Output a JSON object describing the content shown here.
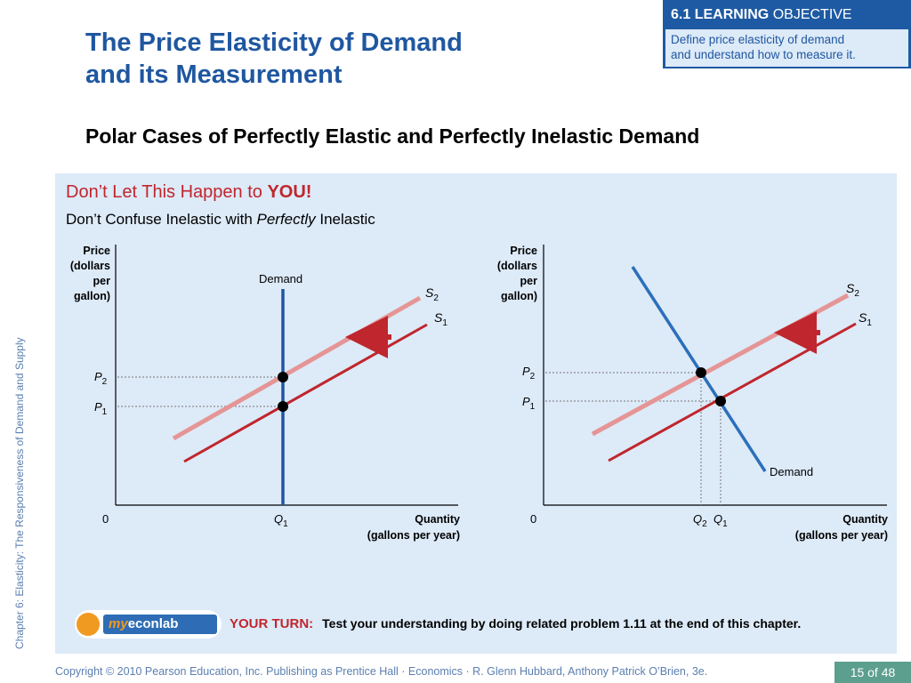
{
  "side_label": "Chapter 6:  Elasticity:  The Responsiveness of Demand and Supply",
  "title_line1": "The Price Elasticity of Demand",
  "title_line2": "and its Measurement",
  "objective": {
    "head_bold": "6.1 LEARNING",
    "head_rest": " OBJECTIVE",
    "line1": "Define price elasticity of demand",
    "line2": "and understand how to measure it."
  },
  "subtitle": "Polar Cases of Perfectly Elastic and Perfectly Inelastic Demand",
  "warning": {
    "prefix": "Don’t Let This Happen to ",
    "emph": "YOU!",
    "line2_a": "Don’t Confuse Inelastic with ",
    "line2_italic": "Perfectly",
    "line2_b": " Inelastic"
  },
  "graph_labels": {
    "price_l1": "Price",
    "price_l2": "(dollars",
    "price_l3": "per",
    "price_l4": "gallon)",
    "quantity_l1": "Quantity",
    "quantity_l2": "(gallons per year)",
    "origin": "0",
    "demand": "Demand",
    "S": "S",
    "S_sub2": "2",
    "S_sub1": "1",
    "P": "P",
    "Q": "Q",
    "sub1": "1",
    "sub2": "2"
  },
  "colors": {
    "demand_line": "#1f55a0",
    "demand_line_right": "#2c6fbb",
    "s1_line": "#c0262d",
    "s2_line": "#e59595",
    "arrow": "#c0262d",
    "panel_bg": "#ddeaf8"
  },
  "your_turn": {
    "label": "YOUR TURN:",
    "text": "Test your understanding by doing related problem 1.11 at the end of this chapter."
  },
  "econlab": {
    "brand_a": "my",
    "brand_b": "econlab"
  },
  "footer": "Copyright © 2010 Pearson Education, Inc. Publishing as Prentice Hall · Economics · R. Glenn Hubbard, Anthony Patrick O’Brien, 3e.",
  "page": "15 of 48"
}
